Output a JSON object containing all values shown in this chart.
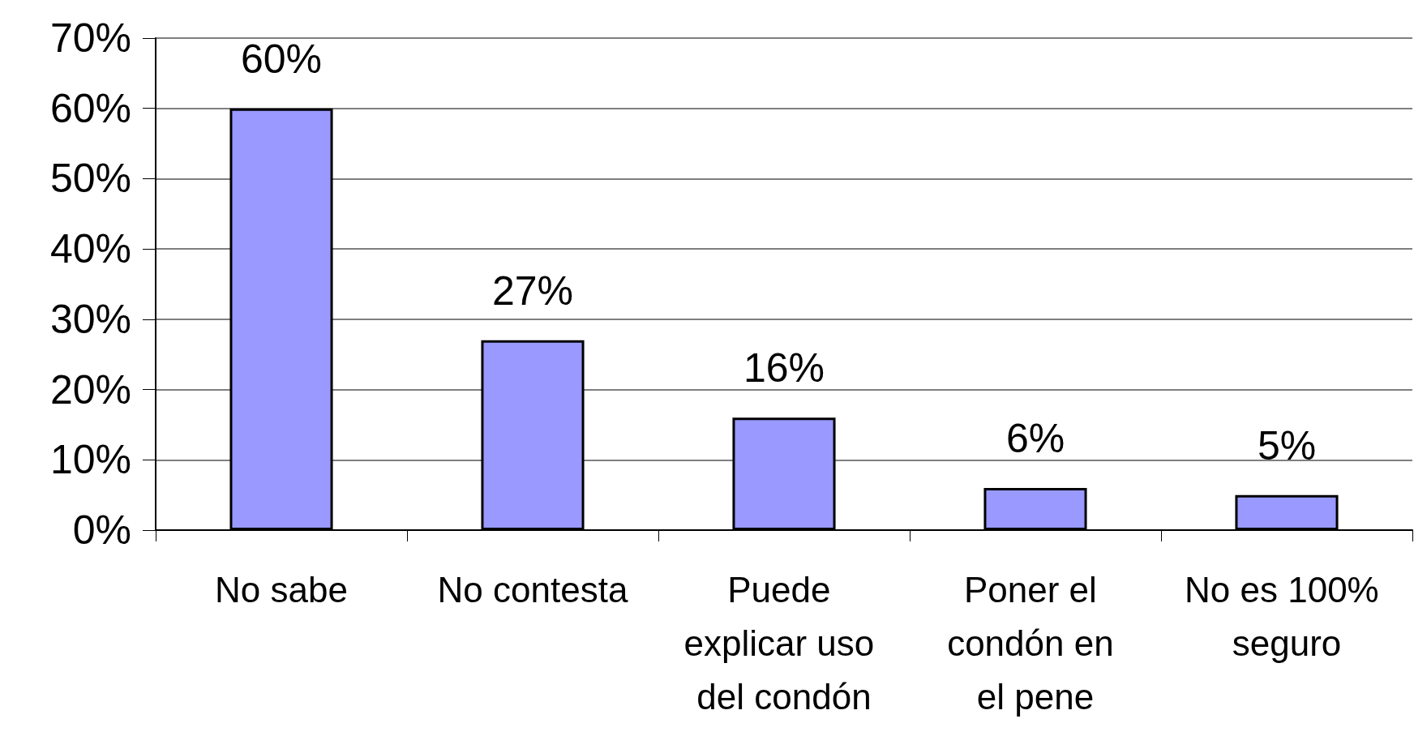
{
  "chart_data": {
    "type": "bar",
    "categories": [
      "No sabe",
      "No contesta",
      "Puede explicar uso del condón",
      "Poner el condón en el pene",
      "No es 100% seguro"
    ],
    "values": [
      60,
      27,
      16,
      6,
      5
    ],
    "value_labels": [
      "60%",
      "27%",
      "16%",
      "6%",
      "5%"
    ],
    "color": "#9999ff",
    "ylim": [
      0,
      70
    ],
    "yticks": [
      {
        "value": 0,
        "label": "0%"
      },
      {
        "value": 10,
        "label": "10%"
      },
      {
        "value": 20,
        "label": "20%"
      },
      {
        "value": 30,
        "label": "30%"
      },
      {
        "value": 40,
        "label": "40%"
      },
      {
        "value": 50,
        "label": "50%"
      },
      {
        "value": 60,
        "label": "60%"
      },
      {
        "value": 70,
        "label": "70%"
      }
    ],
    "grid": true
  }
}
